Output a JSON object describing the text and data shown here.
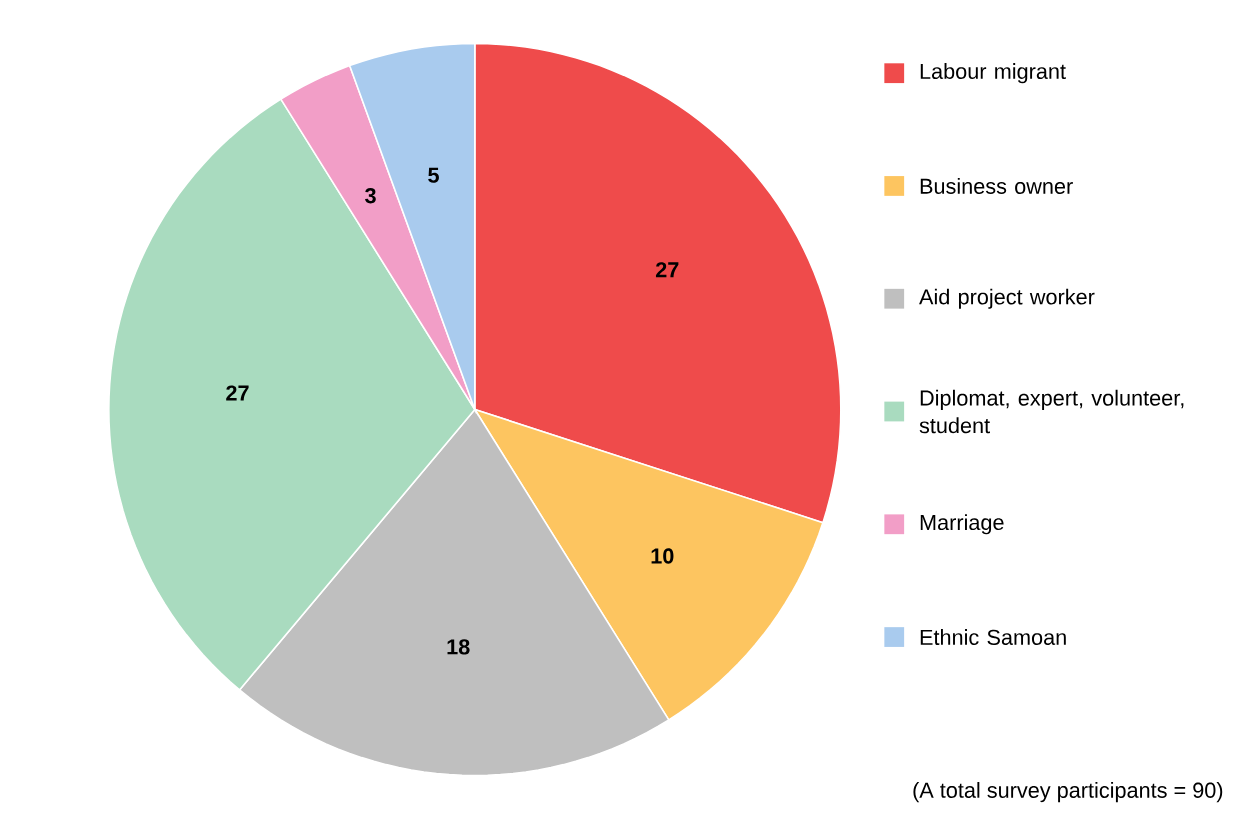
{
  "chart_data": {
    "type": "pie",
    "categories": [
      "Labour migrant",
      "Business owner",
      "Aid project worker",
      "Diplomat, expert, volunteer, student",
      "Marriage",
      "Ethnic Samoan"
    ],
    "values": [
      27,
      10,
      18,
      27,
      3,
      5
    ],
    "colors": [
      "#ef4b4b",
      "#fdc560",
      "#bfbfbf",
      "#a9dbbf",
      "#f29ec7",
      "#a9cbee"
    ],
    "data_labels": true,
    "legend": "right",
    "annotations": [
      "(A total survey participants = 90)"
    ]
  }
}
